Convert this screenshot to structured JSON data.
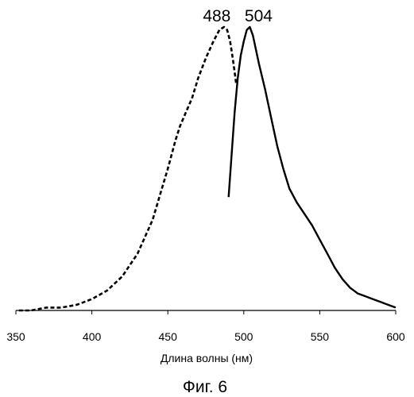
{
  "chart_data": {
    "type": "line",
    "xlabel": "Длина волны (нм)",
    "ylabel": "",
    "xlim": [
      350,
      600
    ],
    "ylim": [
      0,
      1
    ],
    "x_ticks": [
      350,
      400,
      450,
      500,
      550,
      600
    ],
    "x_tick_labels": [
      "350",
      "400",
      "450",
      "500",
      "550",
      "600"
    ],
    "y_axis_visible": false,
    "grid": false,
    "legend": "none",
    "caption": "Фиг. 6",
    "annotations": [
      {
        "text": "488",
        "x": 488,
        "y": 1.0
      },
      {
        "text": "504",
        "x": 504,
        "y": 1.0
      }
    ],
    "series": [
      {
        "style": "dashed",
        "color": "#000000",
        "x": [
          352,
          360,
          370,
          380,
          390,
          400,
          410,
          420,
          430,
          440,
          445,
          450,
          455,
          458,
          462,
          466,
          470,
          475,
          480,
          484,
          487,
          489,
          491,
          493,
          495
        ],
        "y": [
          0.0,
          0.0,
          0.01,
          0.01,
          0.02,
          0.04,
          0.07,
          0.12,
          0.2,
          0.32,
          0.41,
          0.5,
          0.6,
          0.65,
          0.7,
          0.75,
          0.82,
          0.89,
          0.95,
          0.99,
          1.0,
          0.99,
          0.95,
          0.88,
          0.8
        ]
      },
      {
        "style": "solid",
        "color": "#000000",
        "x": [
          490,
          492,
          494,
          496,
          498,
          500,
          502,
          504,
          506,
          508,
          510,
          514,
          518,
          522,
          526,
          530,
          535,
          540,
          545,
          550,
          555,
          560,
          565,
          570,
          575,
          580,
          585,
          590,
          595,
          600
        ],
        "y": [
          0.4,
          0.55,
          0.7,
          0.82,
          0.9,
          0.95,
          0.99,
          1.0,
          0.97,
          0.92,
          0.87,
          0.78,
          0.68,
          0.58,
          0.5,
          0.43,
          0.38,
          0.34,
          0.3,
          0.25,
          0.2,
          0.15,
          0.11,
          0.08,
          0.06,
          0.05,
          0.04,
          0.03,
          0.02,
          0.01
        ]
      }
    ]
  }
}
